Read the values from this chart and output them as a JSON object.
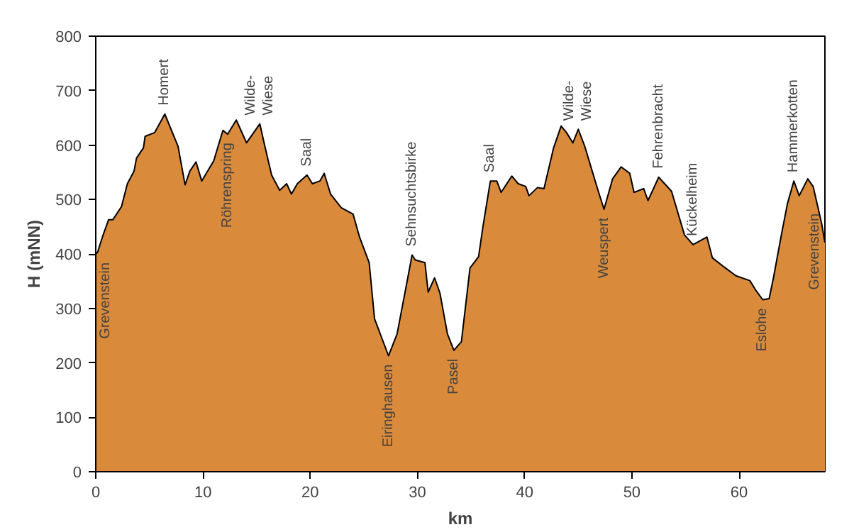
{
  "chart_data": {
    "type": "area",
    "xlabel": "km",
    "ylabel": "H (mNN)",
    "x": [
      0,
      0.17,
      0.62,
      1.2,
      1.6,
      2.4,
      2.95,
      3.57,
      3.8,
      4.45,
      4.6,
      5.5,
      6.44,
      7.67,
      8.33,
      8.77,
      9.35,
      9.88,
      11,
      11.86,
      12.3,
      13.1,
      13.2,
      14.06,
      15.3,
      15.7,
      16.4,
      17.15,
      17.8,
      18.25,
      18.8,
      19.7,
      20.2,
      20.9,
      21.3,
      21.9,
      22.9,
      24,
      24.6,
      25.5,
      26,
      27.3,
      28.1,
      29,
      29.5,
      29.8,
      30.7,
      31,
      31.6,
      32.1,
      32.8,
      33.4,
      34.1,
      34.9,
      35.7,
      36.1,
      36.8,
      37.4,
      37.8,
      38.8,
      39.4,
      40.1,
      40.4,
      41.2,
      41.8,
      42.7,
      43.4,
      43.9,
      44.5,
      45,
      45.6,
      46.3,
      46.9,
      47.4,
      48.2,
      49,
      49.8,
      50.2,
      51.1,
      51.5,
      52.5,
      53.7,
      54.9,
      55.7,
      57,
      57.5,
      58.6,
      59.7,
      61,
      61.6,
      62.2,
      62.8,
      63.2,
      63.9,
      64.5,
      65.1,
      65.6,
      66.4,
      66.9,
      67.3,
      67.7,
      68
    ],
    "series": [
      {
        "color": "#d98a3a",
        "values": [
          400,
          403,
          431,
          463,
          463,
          487,
          529,
          552,
          576,
          595,
          616,
          623,
          657,
          598,
          527,
          552,
          569,
          534,
          571,
          627,
          620,
          646,
          642,
          604,
          639,
          604,
          545,
          517,
          529,
          510,
          529,
          545,
          529,
          534,
          548,
          510,
          485,
          473,
          431,
          384,
          281,
          213,
          253,
          346,
          398,
          389,
          384,
          330,
          356,
          328,
          253,
          223,
          239,
          374,
          395,
          449,
          534,
          534,
          513,
          543,
          529,
          524,
          507,
          522,
          520,
          595,
          635,
          623,
          604,
          629,
          598,
          552,
          513,
          482,
          538,
          560,
          548,
          513,
          520,
          498,
          541,
          515,
          435,
          417,
          431,
          393,
          376,
          360,
          351,
          332,
          316,
          318,
          356,
          431,
          492,
          534,
          507,
          538,
          524,
          490,
          455,
          421
        ]
      }
    ],
    "xlim": [
      0,
      68
    ],
    "ylim": [
      0,
      800
    ],
    "xticks": [
      0,
      10,
      20,
      30,
      40,
      50,
      60
    ],
    "yticks": [
      0,
      100,
      200,
      300,
      400,
      500,
      600,
      700,
      800
    ],
    "grid": false,
    "annotations": [
      {
        "text": "Grevenstein",
        "x": 0,
        "y": 400
      },
      {
        "text": "Homert",
        "x": 6.44,
        "y": 657
      },
      {
        "text": "Röhrenspring",
        "x": 12.3,
        "y": 620
      },
      {
        "text": "Wilde-\nWiese",
        "x": 15.3,
        "y": 639
      },
      {
        "text": "Saal",
        "x": 19.7,
        "y": 545
      },
      {
        "text": "Eiringhausen",
        "x": 27.3,
        "y": 213
      },
      {
        "text": "Sehnsuchtsbirke",
        "x": 29.5,
        "y": 398
      },
      {
        "text": "Pasel",
        "x": 33.4,
        "y": 223
      },
      {
        "text": "Saal",
        "x": 36.8,
        "y": 534
      },
      {
        "text": "Wilde-\nWiese",
        "x": 45,
        "y": 629
      },
      {
        "text": "Weuspert",
        "x": 47.4,
        "y": 482
      },
      {
        "text": "Fehrenbracht",
        "x": 52.5,
        "y": 541
      },
      {
        "text": "Kückelheim",
        "x": 55.7,
        "y": 417
      },
      {
        "text": "Eslohe",
        "x": 62.2,
        "y": 316
      },
      {
        "text": "Hammerkotten",
        "x": 65.1,
        "y": 534
      },
      {
        "text": "Grevenstein",
        "x": 67.3,
        "y": 490
      }
    ]
  }
}
